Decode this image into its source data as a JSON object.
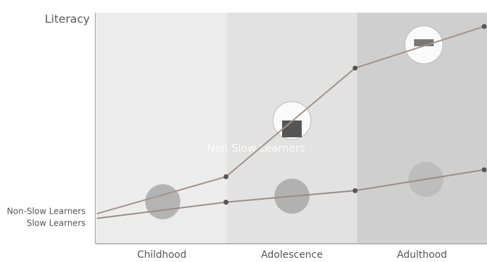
{
  "chart_data": {
    "type": "line",
    "y_label": "Literacy",
    "bands": [
      "Childhood",
      "Adolescence",
      "Adulthood"
    ],
    "band_colors": [
      "#ececec",
      "#e2e2e2",
      "#cfcfcf"
    ],
    "annotation": "Non Slow Learners",
    "x": [
      0,
      1,
      2,
      3
    ],
    "xlim": [
      0,
      3
    ],
    "ylim": [
      0,
      100
    ],
    "series": [
      {
        "name": "Non-Slow Learners",
        "color": "#a3928d",
        "values": [
          13,
          29,
          76,
          94
        ]
      },
      {
        "name": "Slow Learners",
        "color": "#9a8c88",
        "values": [
          11,
          18,
          23,
          32
        ]
      }
    ]
  }
}
